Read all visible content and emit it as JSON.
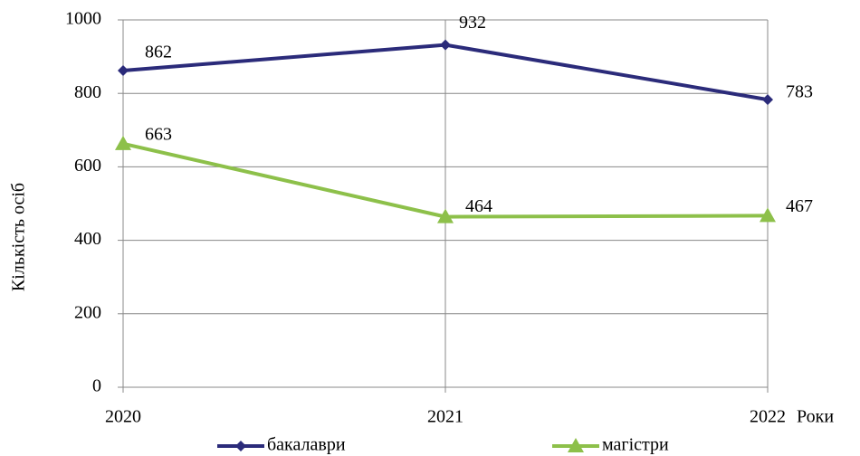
{
  "chart_data": {
    "type": "line",
    "categories": [
      "2020",
      "2021",
      "2022"
    ],
    "x_label": "Роки",
    "y_label": "Кількість осіб",
    "ylim": [
      0,
      1000
    ],
    "yticks": [
      0,
      200,
      400,
      600,
      800,
      1000
    ],
    "grid": true,
    "legend": "bottom",
    "series": [
      {
        "name": "бакалаври",
        "color": "#2b2b7a",
        "marker": "diamond",
        "values": [
          862,
          932,
          783
        ]
      },
      {
        "name": "магістри",
        "color": "#8dc04a",
        "marker": "triangle",
        "values": [
          663,
          464,
          467
        ]
      }
    ]
  }
}
